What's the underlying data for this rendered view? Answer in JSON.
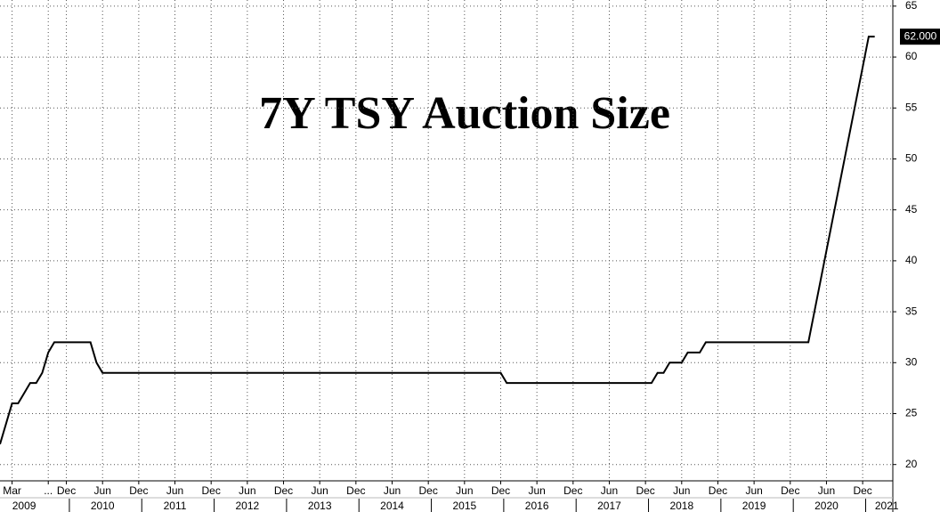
{
  "chart_data": {
    "type": "line",
    "title": "7Y TSY Auction Size",
    "x": [
      "2009-01",
      "2009-02",
      "2009-03",
      "2009-04",
      "2009-05",
      "2009-06",
      "2009-07",
      "2009-08",
      "2009-09",
      "2009-10",
      "2009-11",
      "2009-12",
      "2010-01",
      "2010-02",
      "2010-03",
      "2010-04",
      "2010-05",
      "2010-06",
      "2010-07",
      "2010-08",
      "2010-09",
      "2010-10",
      "2010-11",
      "2010-12",
      "2011-01",
      "2011-02",
      "2011-03",
      "2011-04",
      "2011-05",
      "2011-06",
      "2011-07",
      "2011-08",
      "2011-09",
      "2011-10",
      "2011-11",
      "2011-12",
      "2012-01",
      "2012-02",
      "2012-03",
      "2012-04",
      "2012-05",
      "2012-06",
      "2012-07",
      "2012-08",
      "2012-09",
      "2012-10",
      "2012-11",
      "2012-12",
      "2013-01",
      "2013-02",
      "2013-03",
      "2013-04",
      "2013-05",
      "2013-06",
      "2013-07",
      "2013-08",
      "2013-09",
      "2013-10",
      "2013-11",
      "2013-12",
      "2014-01",
      "2014-02",
      "2014-03",
      "2014-04",
      "2014-05",
      "2014-06",
      "2014-07",
      "2014-08",
      "2014-09",
      "2014-10",
      "2014-11",
      "2014-12",
      "2015-01",
      "2015-02",
      "2015-03",
      "2015-04",
      "2015-05",
      "2015-06",
      "2015-07",
      "2015-08",
      "2015-09",
      "2015-10",
      "2015-11",
      "2015-12",
      "2016-01",
      "2016-02",
      "2016-03",
      "2016-04",
      "2016-05",
      "2016-06",
      "2016-07",
      "2016-08",
      "2016-09",
      "2016-10",
      "2016-11",
      "2016-12",
      "2017-01",
      "2017-02",
      "2017-03",
      "2017-04",
      "2017-05",
      "2017-06",
      "2017-07",
      "2017-08",
      "2017-09",
      "2017-10",
      "2017-11",
      "2017-12",
      "2018-01",
      "2018-02",
      "2018-03",
      "2018-04",
      "2018-05",
      "2018-06",
      "2018-07",
      "2018-08",
      "2018-09",
      "2018-10",
      "2018-11",
      "2018-12",
      "2019-01",
      "2019-02",
      "2019-03",
      "2019-04",
      "2019-05",
      "2019-06",
      "2019-07",
      "2019-08",
      "2019-09",
      "2019-10",
      "2019-11",
      "2019-12",
      "2020-01",
      "2020-02",
      "2020-03",
      "2020-04",
      "2020-05",
      "2020-06",
      "2020-07",
      "2020-08",
      "2020-09",
      "2020-10",
      "2020-11",
      "2020-12",
      "2021-01",
      "2021-02"
    ],
    "series": [
      {
        "color": "#000000",
        "values": [
          22,
          24,
          26,
          26,
          27,
          28,
          28,
          29,
          31,
          32,
          32,
          32,
          32,
          32,
          32,
          32,
          30,
          29,
          29,
          29,
          29,
          29,
          29,
          29,
          29,
          29,
          29,
          29,
          29,
          29,
          29,
          29,
          29,
          29,
          29,
          29,
          29,
          29,
          29,
          29,
          29,
          29,
          29,
          29,
          29,
          29,
          29,
          29,
          29,
          29,
          29,
          29,
          29,
          29,
          29,
          29,
          29,
          29,
          29,
          29,
          29,
          29,
          29,
          29,
          29,
          29,
          29,
          29,
          29,
          29,
          29,
          29,
          29,
          29,
          29,
          29,
          29,
          29,
          29,
          29,
          29,
          29,
          29,
          29,
          28,
          28,
          28,
          28,
          28,
          28,
          28,
          28,
          28,
          28,
          28,
          28,
          28,
          28,
          28,
          28,
          28,
          28,
          28,
          28,
          28,
          28,
          28,
          28,
          28,
          29,
          29,
          30,
          30,
          30,
          31,
          31,
          31,
          32,
          32,
          32,
          32,
          32,
          32,
          32,
          32,
          32,
          32,
          32,
          32,
          32,
          32,
          32,
          32,
          32,
          32,
          35,
          38,
          41,
          44,
          47,
          50,
          53,
          56,
          59,
          62,
          62
        ],
        "value_labels": [
          null,
          null,
          null,
          null,
          null,
          null,
          null,
          null,
          null,
          null,
          null,
          null,
          null,
          null,
          null,
          null,
          null,
          null,
          null,
          null,
          null,
          null,
          null,
          null,
          null,
          null,
          null,
          null,
          null,
          null,
          null,
          null,
          null,
          null,
          null,
          null,
          null,
          null,
          null,
          null,
          null,
          null,
          null,
          null,
          null,
          null,
          null,
          null,
          null,
          null,
          null,
          null,
          null,
          null,
          null,
          null,
          null,
          null,
          null,
          null,
          null,
          null,
          null,
          null,
          null,
          null,
          null,
          null,
          null,
          null,
          null,
          null,
          null,
          null,
          null,
          null,
          null,
          null,
          null,
          null,
          null,
          null,
          null,
          null,
          null,
          null,
          null,
          null,
          null,
          null,
          null,
          null,
          null,
          null,
          null,
          null,
          null,
          null,
          null,
          null,
          null,
          null,
          null,
          null,
          null,
          null,
          null,
          null,
          null,
          null,
          null,
          null,
          null,
          null,
          null,
          null,
          null,
          null,
          null,
          null,
          null,
          null,
          null,
          null,
          null,
          null,
          null,
          null,
          null,
          null,
          null,
          null,
          null,
          null,
          null,
          null,
          null,
          null,
          null,
          null,
          null,
          null,
          null,
          null,
          null,
          "62.000"
        ]
      }
    ],
    "xlim": [
      "2009-01",
      "2021-05"
    ],
    "xticks": [
      {
        "value": "2009-03",
        "label": "Mar"
      },
      {
        "value": "2009-09",
        "label": "..."
      },
      {
        "value": "2009-12",
        "label": "Dec"
      },
      {
        "value": "2010-06",
        "label": "Jun"
      },
      {
        "value": "2010-12",
        "label": "Dec"
      },
      {
        "value": "2011-06",
        "label": "Jun"
      },
      {
        "value": "2011-12",
        "label": "Dec"
      },
      {
        "value": "2012-06",
        "label": "Jun"
      },
      {
        "value": "2012-12",
        "label": "Dec"
      },
      {
        "value": "2013-06",
        "label": "Jun"
      },
      {
        "value": "2013-12",
        "label": "Dec"
      },
      {
        "value": "2014-06",
        "label": "Jun"
      },
      {
        "value": "2014-12",
        "label": "Dec"
      },
      {
        "value": "2015-06",
        "label": "Jun"
      },
      {
        "value": "2015-12",
        "label": "Dec"
      },
      {
        "value": "2016-06",
        "label": "Jun"
      },
      {
        "value": "2016-12",
        "label": "Dec"
      },
      {
        "value": "2017-06",
        "label": "Jun"
      },
      {
        "value": "2017-12",
        "label": "Dec"
      },
      {
        "value": "2018-06",
        "label": "Jun"
      },
      {
        "value": "2018-12",
        "label": "Dec"
      },
      {
        "value": "2019-06",
        "label": "Jun"
      },
      {
        "value": "2019-12",
        "label": "Dec"
      },
      {
        "value": "2020-06",
        "label": "Jun"
      },
      {
        "value": "2020-12",
        "label": "Dec"
      }
    ],
    "year_labels": [
      {
        "value": "2009-05",
        "label": "2009"
      },
      {
        "value": "2010-06",
        "label": "2010"
      },
      {
        "value": "2011-06",
        "label": "2011"
      },
      {
        "value": "2012-06",
        "label": "2012"
      },
      {
        "value": "2013-06",
        "label": "2013"
      },
      {
        "value": "2014-06",
        "label": "2014"
      },
      {
        "value": "2015-06",
        "label": "2015"
      },
      {
        "value": "2016-06",
        "label": "2016"
      },
      {
        "value": "2017-06",
        "label": "2017"
      },
      {
        "value": "2018-06",
        "label": "2018"
      },
      {
        "value": "2019-06",
        "label": "2019"
      },
      {
        "value": "2020-06",
        "label": "2020"
      },
      {
        "value": "2021-04",
        "label": "2021"
      }
    ],
    "ylim": [
      18.4,
      65.6
    ],
    "yticks": [
      20,
      25,
      30,
      35,
      40,
      45,
      50,
      55,
      60,
      65
    ],
    "grid": true
  }
}
